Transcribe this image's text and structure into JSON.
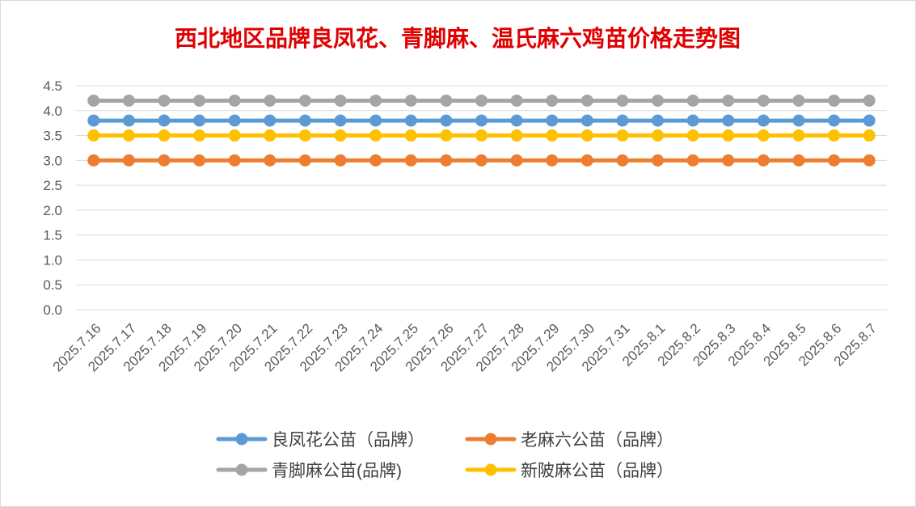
{
  "chart_data": {
    "type": "line",
    "title": "西北地区品牌良凤花、青脚麻、温氏麻六鸡苗价格走势图",
    "xlabel": "",
    "ylabel": "",
    "x": [
      "2025.7.16",
      "2025.7.17",
      "2025.7.18",
      "2025.7.19",
      "2025.7.20",
      "2025.7.21",
      "2025.7.22",
      "2025.7.23",
      "2025.7.24",
      "2025.7.25",
      "2025.7.26",
      "2025.7.27",
      "2025.7.28",
      "2025.7.29",
      "2025.7.30",
      "2025.7.31",
      "2025.8.1",
      "2025.8.2",
      "2025.8.3",
      "2025.8.4",
      "2025.8.5",
      "2025.8.6",
      "2025.8.7"
    ],
    "ylim": [
      0,
      4.5
    ],
    "yticks": [
      "0.0",
      "0.5",
      "1.0",
      "1.5",
      "2.0",
      "2.5",
      "3.0",
      "3.5",
      "4.0",
      "4.5"
    ],
    "grid": true,
    "legend_position": "bottom",
    "series": [
      {
        "name": "良凤花公苗（品牌）",
        "color": "#5b9bd5",
        "values": [
          3.8,
          3.8,
          3.8,
          3.8,
          3.8,
          3.8,
          3.8,
          3.8,
          3.8,
          3.8,
          3.8,
          3.8,
          3.8,
          3.8,
          3.8,
          3.8,
          3.8,
          3.8,
          3.8,
          3.8,
          3.8,
          3.8,
          3.8
        ]
      },
      {
        "name": "老麻六公苗（品牌）",
        "color": "#ed7d31",
        "values": [
          3.0,
          3.0,
          3.0,
          3.0,
          3.0,
          3.0,
          3.0,
          3.0,
          3.0,
          3.0,
          3.0,
          3.0,
          3.0,
          3.0,
          3.0,
          3.0,
          3.0,
          3.0,
          3.0,
          3.0,
          3.0,
          3.0,
          3.0
        ]
      },
      {
        "name": "青脚麻公苗(品牌)",
        "color": "#a5a5a5",
        "values": [
          4.2,
          4.2,
          4.2,
          4.2,
          4.2,
          4.2,
          4.2,
          4.2,
          4.2,
          4.2,
          4.2,
          4.2,
          4.2,
          4.2,
          4.2,
          4.2,
          4.2,
          4.2,
          4.2,
          4.2,
          4.2,
          4.2,
          4.2
        ]
      },
      {
        "name": "新陂麻公苗（品牌）",
        "color": "#ffc000",
        "values": [
          3.5,
          3.5,
          3.5,
          3.5,
          3.5,
          3.5,
          3.5,
          3.5,
          3.5,
          3.5,
          3.5,
          3.5,
          3.5,
          3.5,
          3.5,
          3.5,
          3.5,
          3.5,
          3.5,
          3.5,
          3.5,
          3.5,
          3.5
        ]
      }
    ],
    "draw_order": [
      2,
      0,
      3,
      1
    ]
  },
  "colors": {
    "title": "#e00000",
    "axis_text": "#595959",
    "grid": "#d9d9d9"
  }
}
